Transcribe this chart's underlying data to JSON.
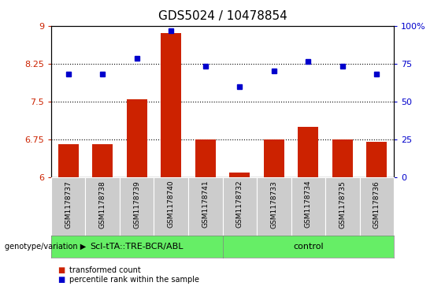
{
  "title": "GDS5024 / 10478854",
  "samples": [
    "GSM1178737",
    "GSM1178738",
    "GSM1178739",
    "GSM1178740",
    "GSM1178741",
    "GSM1178732",
    "GSM1178733",
    "GSM1178734",
    "GSM1178735",
    "GSM1178736"
  ],
  "bar_values": [
    6.65,
    6.65,
    7.55,
    8.85,
    6.75,
    6.1,
    6.75,
    7.0,
    6.75,
    6.7
  ],
  "dot_values_left_scale": [
    8.05,
    8.05,
    8.35,
    8.9,
    8.2,
    7.8,
    8.1,
    8.3,
    8.2,
    8.05
  ],
  "bar_color": "#cc2200",
  "dot_color": "#0000cc",
  "ylim_left": [
    6,
    9
  ],
  "ylim_right": [
    0,
    100
  ],
  "yticks_left": [
    6,
    6.75,
    7.5,
    8.25,
    9
  ],
  "ytick_labels_left": [
    "6",
    "6.75",
    "7.5",
    "8.25",
    "9"
  ],
  "yticks_right": [
    0,
    25,
    50,
    75,
    100
  ],
  "ytick_labels_right": [
    "0",
    "25",
    "50",
    "75",
    "100%"
  ],
  "hlines": [
    6.75,
    7.5,
    8.25
  ],
  "group1_label": "Scl-tTA::TRE-BCR/ABL",
  "group2_label": "control",
  "group1_count": 5,
  "group2_count": 5,
  "group_label_prefix": "genotype/variation",
  "legend_bar_label": "transformed count",
  "legend_dot_label": "percentile rank within the sample",
  "group_bg_color": "#66ee66",
  "tick_bg_color": "#cccccc",
  "title_fontsize": 11
}
